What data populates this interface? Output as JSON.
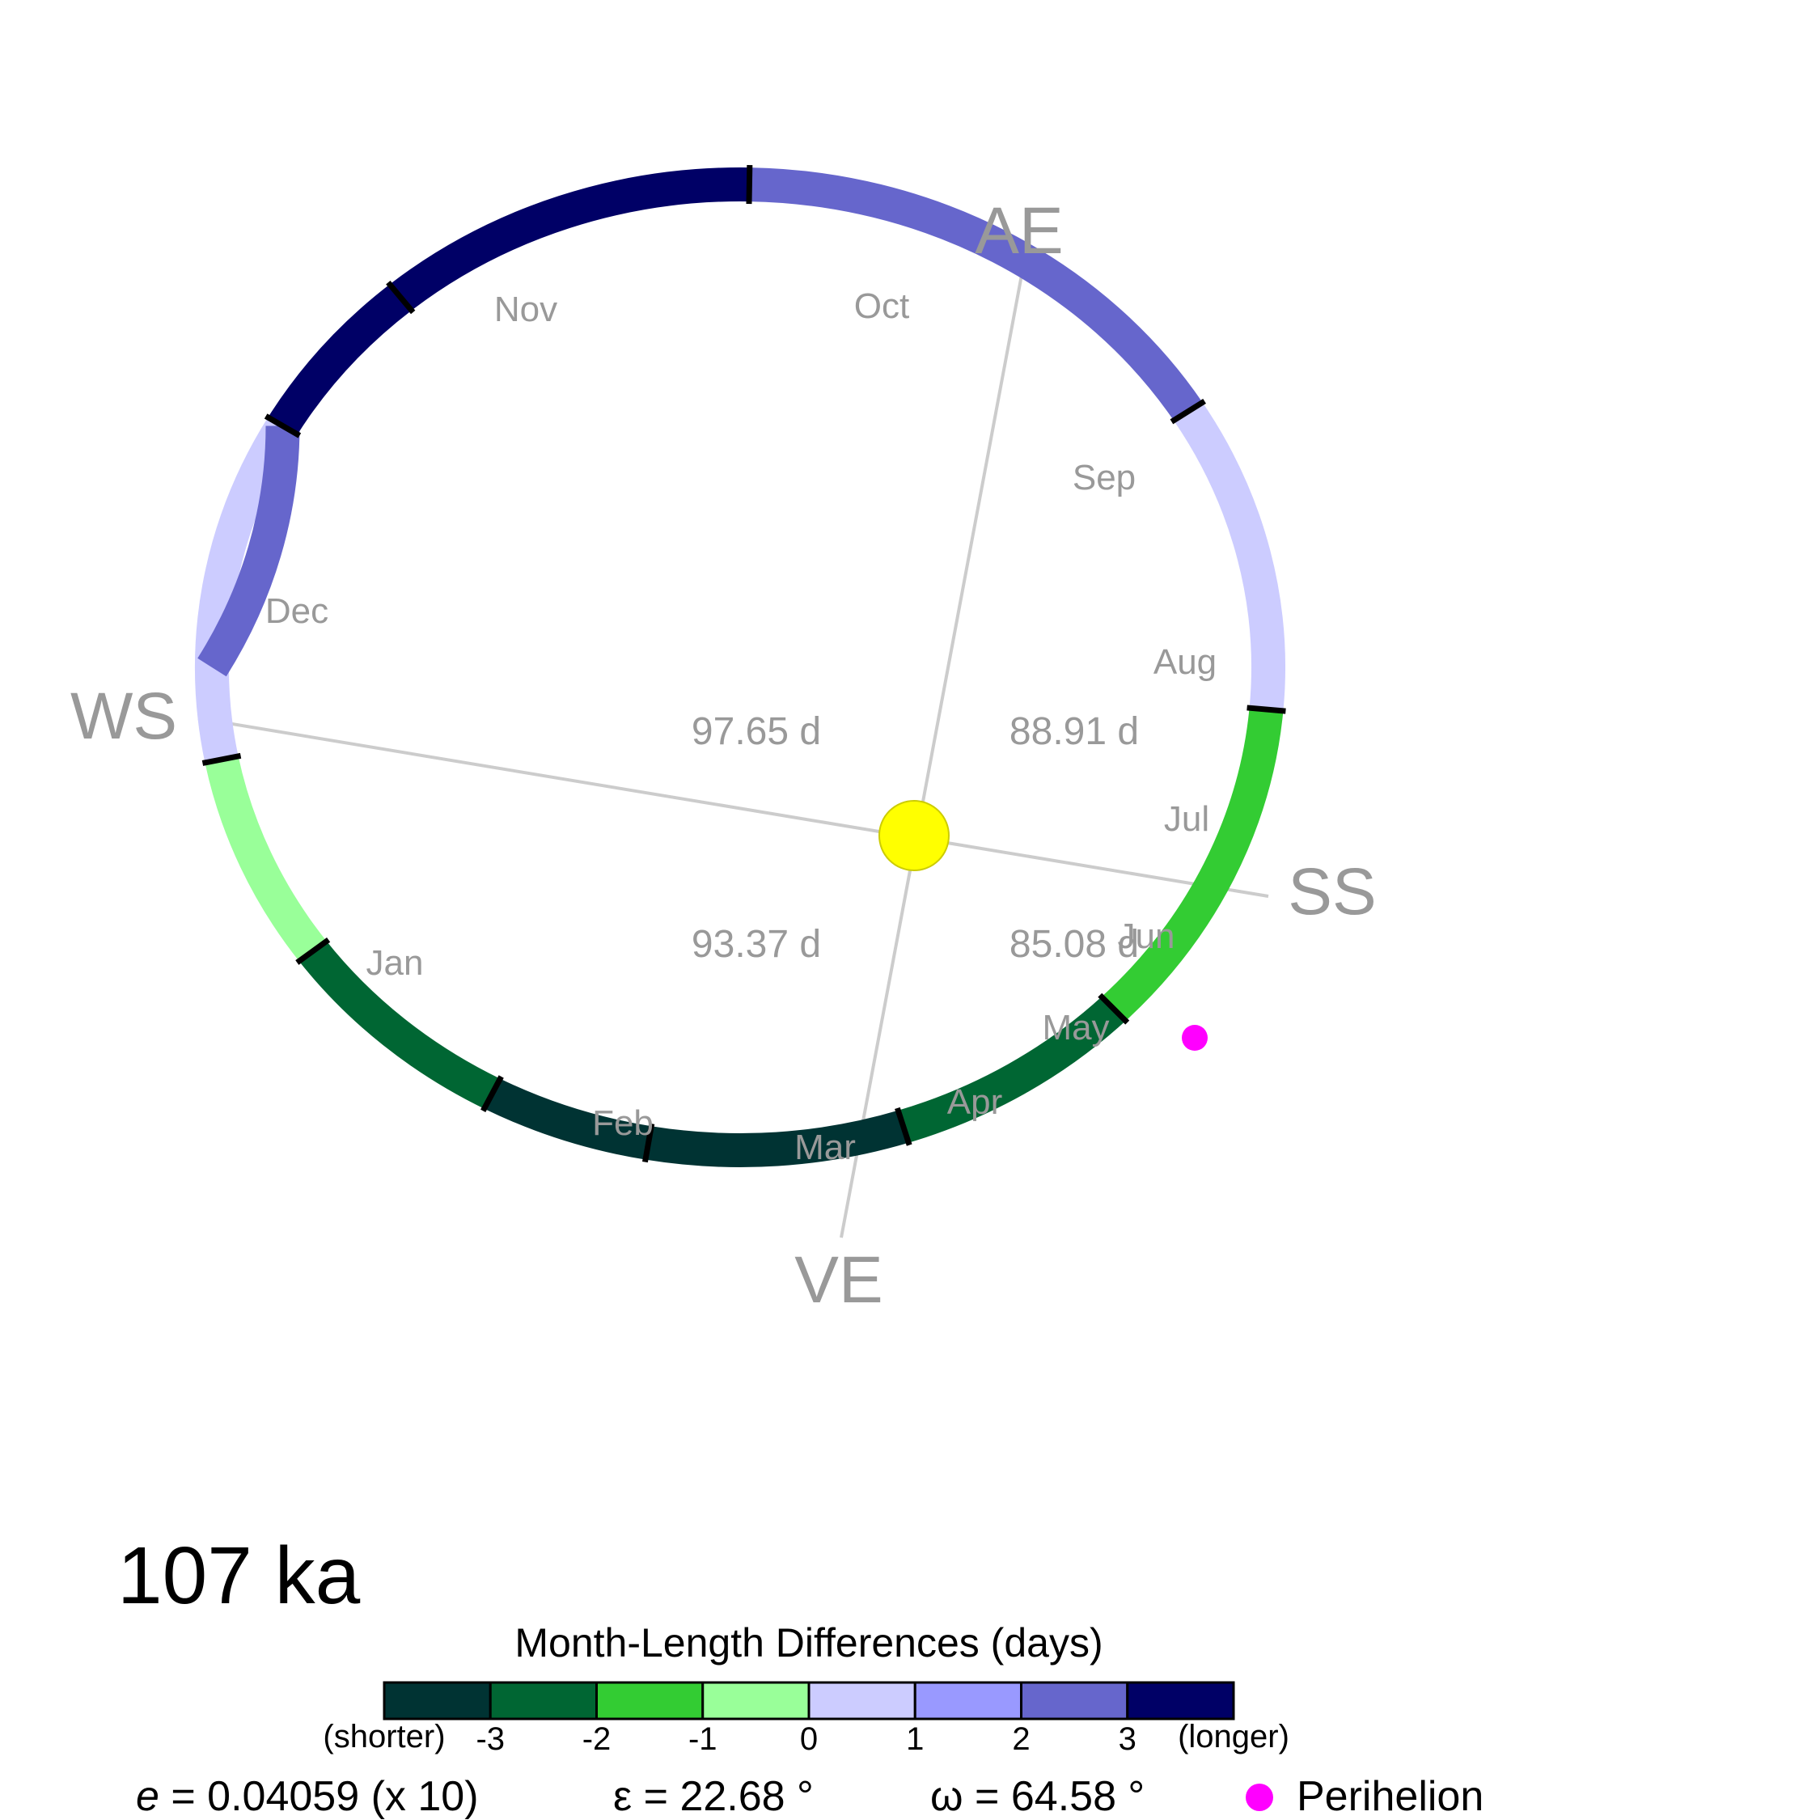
{
  "age_label": "107 ka",
  "cardinals": {
    "AE": "AE",
    "WS": "WS",
    "SS": "SS",
    "VE": "VE"
  },
  "season_lengths": {
    "ws_ae": "97.65 d",
    "ae_ss": "88.91 d",
    "ve_ws": "93.37 d",
    "ss_ve": "85.08 d"
  },
  "months": [
    {
      "name": "Nov",
      "diff_class": 3
    },
    {
      "name": "Oct",
      "diff_class": 2
    },
    {
      "name": "Sep",
      "diff_class": 0
    },
    {
      "name": "Aug",
      "diff_class": -2
    },
    {
      "name": "Jul",
      "diff_class": -3
    },
    {
      "name": "Jun",
      "diff_class": -4
    },
    {
      "name": "May",
      "diff_class": -4
    },
    {
      "name": "Apr",
      "diff_class": -3
    },
    {
      "name": "Mar",
      "diff_class": -1
    },
    {
      "name": "Feb",
      "diff_class": 0
    },
    {
      "name": "Jan",
      "diff_class": 2
    },
    {
      "name": "Dec",
      "diff_class": 3
    }
  ],
  "legend": {
    "title": "Month-Length Differences (days)",
    "colors": [
      "#003333",
      "#006633",
      "#33CC33",
      "#99FF99",
      "#CCCCFF",
      "#9999FF",
      "#6666CC",
      "#000066"
    ],
    "tick_labels": [
      "-3",
      "-2",
      "-1",
      "0",
      "1",
      "2",
      "3"
    ],
    "left_label": "(shorter)",
    "right_label": "(longer)"
  },
  "params": {
    "e_symbol": "e",
    "e_text": " = 0.04059 (x 10)",
    "epsilon_text": "ε  = 22.68 °",
    "omega_text": "ω  = 64.58 °",
    "perihelion_label": "Perihelion"
  },
  "colors": {
    "perihelion": "#FF00FF",
    "sun_fill": "#FFFF00",
    "sun_stroke": "#CCCC00",
    "axis_line": "#CCCCCC",
    "label_gray": "#999999"
  }
}
